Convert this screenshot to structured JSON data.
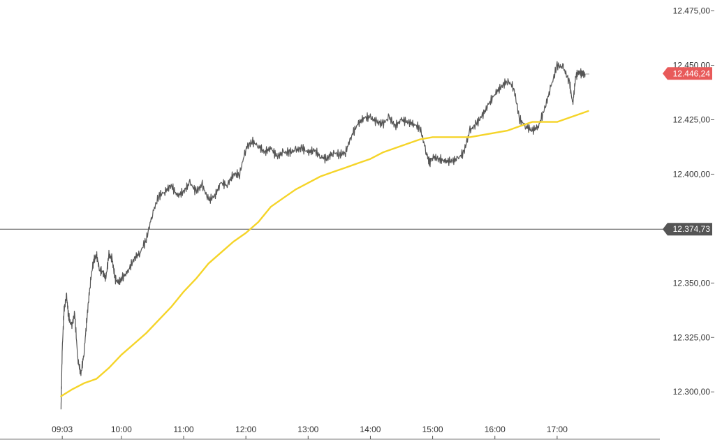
{
  "chart_data": {
    "type": "line",
    "title": "",
    "xlabel": "",
    "ylabel": "",
    "ylim": [
      12285,
      12480
    ],
    "y_ticks": [
      {
        "value": 12475,
        "label": "12.475,00"
      },
      {
        "value": 12450,
        "label": "12.450,00"
      },
      {
        "value": 12425,
        "label": "12.425,00"
      },
      {
        "value": 12400,
        "label": "12.400,00"
      },
      {
        "value": 12350,
        "label": "12.350,00"
      },
      {
        "value": 12325,
        "label": "12.325,00"
      },
      {
        "value": 12300,
        "label": "12.300,00"
      }
    ],
    "x_ticks": [
      "09:03",
      "10:00",
      "11:00",
      "12:00",
      "13:00",
      "14:00",
      "15:00",
      "16:00",
      "17:00"
    ],
    "x_tick_hours": [
      9.05,
      10,
      11,
      12,
      13,
      14,
      15,
      16,
      17
    ],
    "x_range_hours": [
      8.05,
      18.65
    ],
    "grid": false,
    "reference_line": {
      "value": 12374.73,
      "label": "12.374,73",
      "color": "#555555"
    },
    "last_price": {
      "value": 12446.24,
      "label": "12.446,24",
      "color": "#e85a5a"
    },
    "series": [
      {
        "kind": "price",
        "color": "#555555",
        "x": [
          9.03,
          9.05,
          9.08,
          9.12,
          9.15,
          9.2,
          9.25,
          9.3,
          9.35,
          9.4,
          9.45,
          9.5,
          9.55,
          9.6,
          9.65,
          9.7,
          9.75,
          9.8,
          9.85,
          9.9,
          9.95,
          10.0,
          10.1,
          10.2,
          10.3,
          10.4,
          10.5,
          10.6,
          10.7,
          10.8,
          10.9,
          11.0,
          11.1,
          11.2,
          11.3,
          11.4,
          11.5,
          11.6,
          11.7,
          11.8,
          11.9,
          12.0,
          12.1,
          12.2,
          12.3,
          12.4,
          12.5,
          12.6,
          12.7,
          12.8,
          12.9,
          13.0,
          13.1,
          13.2,
          13.3,
          13.4,
          13.5,
          13.6,
          13.7,
          13.8,
          13.9,
          14.0,
          14.1,
          14.2,
          14.3,
          14.4,
          14.5,
          14.6,
          14.7,
          14.8,
          14.9,
          14.95,
          15.0,
          15.1,
          15.2,
          15.3,
          15.4,
          15.5,
          15.6,
          15.7,
          15.8,
          15.9,
          16.0,
          16.1,
          16.2,
          16.3,
          16.4,
          16.5,
          16.6,
          16.7,
          16.8,
          16.9,
          17.0,
          17.1,
          17.2,
          17.25,
          17.3,
          17.35,
          17.4,
          17.45
        ],
        "y": [
          12292,
          12320,
          12338,
          12344,
          12335,
          12330,
          12336,
          12315,
          12308,
          12318,
          12335,
          12350,
          12360,
          12363,
          12356,
          12355,
          12352,
          12363,
          12361,
          12352,
          12350,
          12352,
          12355,
          12361,
          12364,
          12370,
          12382,
          12390,
          12392,
          12395,
          12390,
          12392,
          12396,
          12392,
          12395,
          12388,
          12390,
          12396,
          12395,
          12400,
          12400,
          12412,
          12415,
          12413,
          12410,
          12412,
          12408,
          12410,
          12410,
          12411,
          12412,
          12410,
          12411,
          12408,
          12407,
          12410,
          12409,
          12410,
          12418,
          12423,
          12426,
          12426,
          12424,
          12423,
          12426,
          12422,
          12425,
          12424,
          12423,
          12421,
          12410,
          12405,
          12408,
          12407,
          12406,
          12406,
          12407,
          12410,
          12420,
          12423,
          12427,
          12432,
          12437,
          12440,
          12443,
          12440,
          12425,
          12422,
          12420,
          12422,
          12430,
          12440,
          12450,
          12449,
          12442,
          12432,
          12445,
          12447,
          12446,
          12446
        ]
      },
      {
        "kind": "moving-average",
        "color": "#f5d428",
        "x": [
          9.03,
          9.2,
          9.4,
          9.6,
          9.8,
          10.0,
          10.2,
          10.4,
          10.6,
          10.8,
          11.0,
          11.2,
          11.4,
          11.6,
          11.8,
          12.0,
          12.2,
          12.4,
          12.6,
          12.8,
          13.0,
          13.2,
          13.4,
          13.6,
          13.8,
          14.0,
          14.2,
          14.4,
          14.6,
          14.8,
          15.0,
          15.2,
          15.4,
          15.6,
          15.8,
          16.0,
          16.2,
          16.4,
          16.6,
          16.8,
          17.0,
          17.2,
          17.4,
          17.5
        ],
        "y": [
          12298,
          12301,
          12304,
          12306,
          12311,
          12317,
          12322,
          12327,
          12333,
          12339,
          12346,
          12352,
          12359,
          12364,
          12369,
          12373,
          12378,
          12385,
          12389,
          12393,
          12396,
          12399,
          12401,
          12403,
          12405,
          12407,
          12410,
          12412,
          12414,
          12416,
          12417,
          12417,
          12417,
          12417,
          12418,
          12419,
          12420,
          12422,
          12424,
          12424,
          12424,
          12426,
          12428,
          12429
        ]
      }
    ]
  }
}
